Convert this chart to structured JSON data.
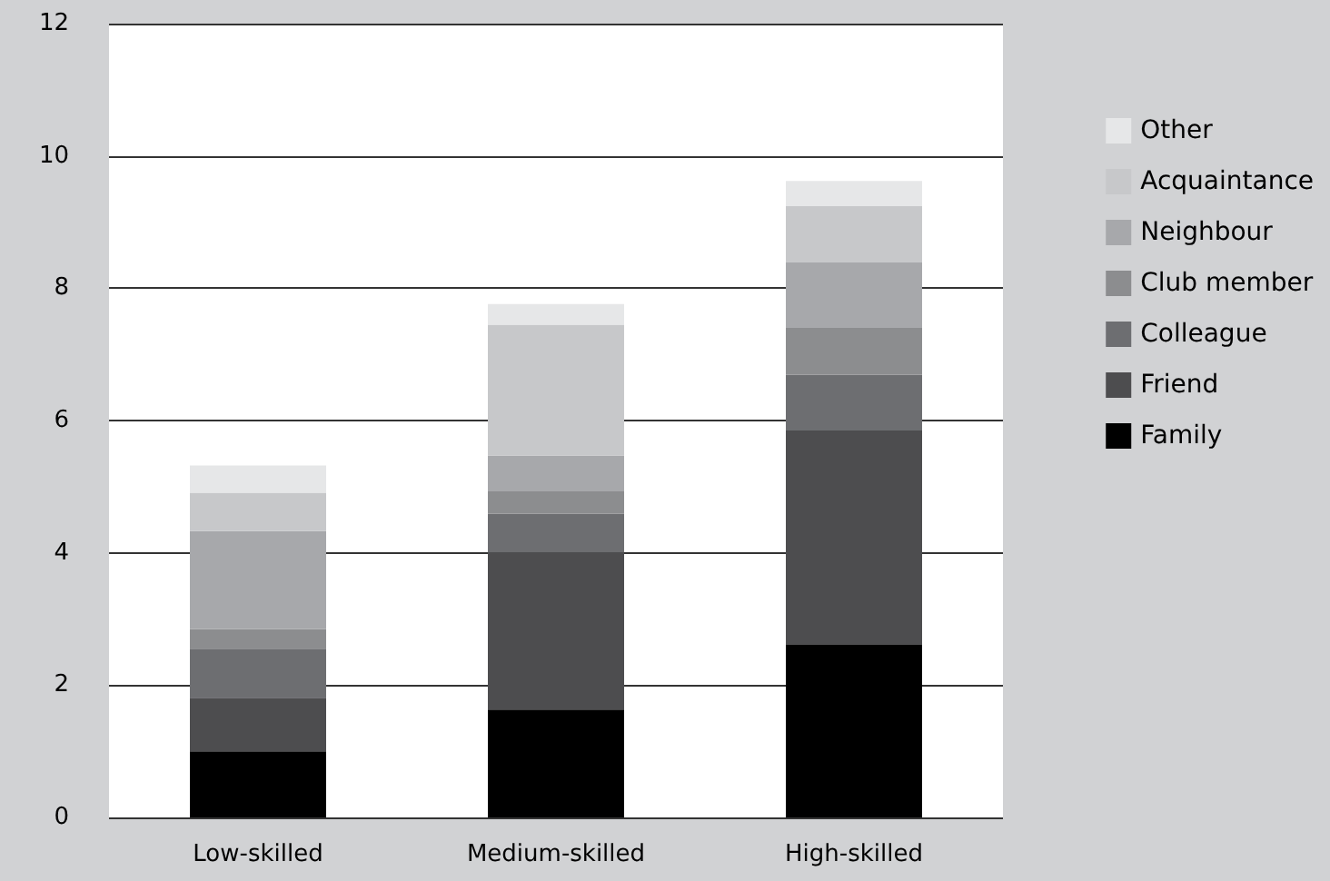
{
  "chart_data": {
    "type": "bar",
    "stacked": true,
    "categories": [
      "Low-skilled",
      "Medium-skilled",
      "High-skilled"
    ],
    "series": [
      {
        "name": "Family",
        "color": "#000000",
        "values": [
          1.0,
          1.63,
          2.61
        ]
      },
      {
        "name": "Friend",
        "color": "#4d4d4f",
        "values": [
          0.81,
          2.38,
          3.24
        ]
      },
      {
        "name": "Colleague",
        "color": "#6d6e71",
        "values": [
          0.74,
          0.58,
          0.84
        ]
      },
      {
        "name": "Club member",
        "color": "#8c8d8f",
        "values": [
          0.3,
          0.35,
          0.71
        ]
      },
      {
        "name": "Neighbour",
        "color": "#a7a8ab",
        "values": [
          1.48,
          0.53,
          0.99
        ]
      },
      {
        "name": "Acquaintance",
        "color": "#c7c8ca",
        "values": [
          0.58,
          1.98,
          0.85
        ]
      },
      {
        "name": "Other",
        "color": "#e6e7e8",
        "values": [
          0.41,
          0.31,
          0.38
        ]
      }
    ],
    "ylim": [
      0,
      12
    ],
    "yticks": [
      0,
      2,
      4,
      6,
      8,
      10,
      12
    ],
    "grid": "y",
    "legend": "right"
  }
}
